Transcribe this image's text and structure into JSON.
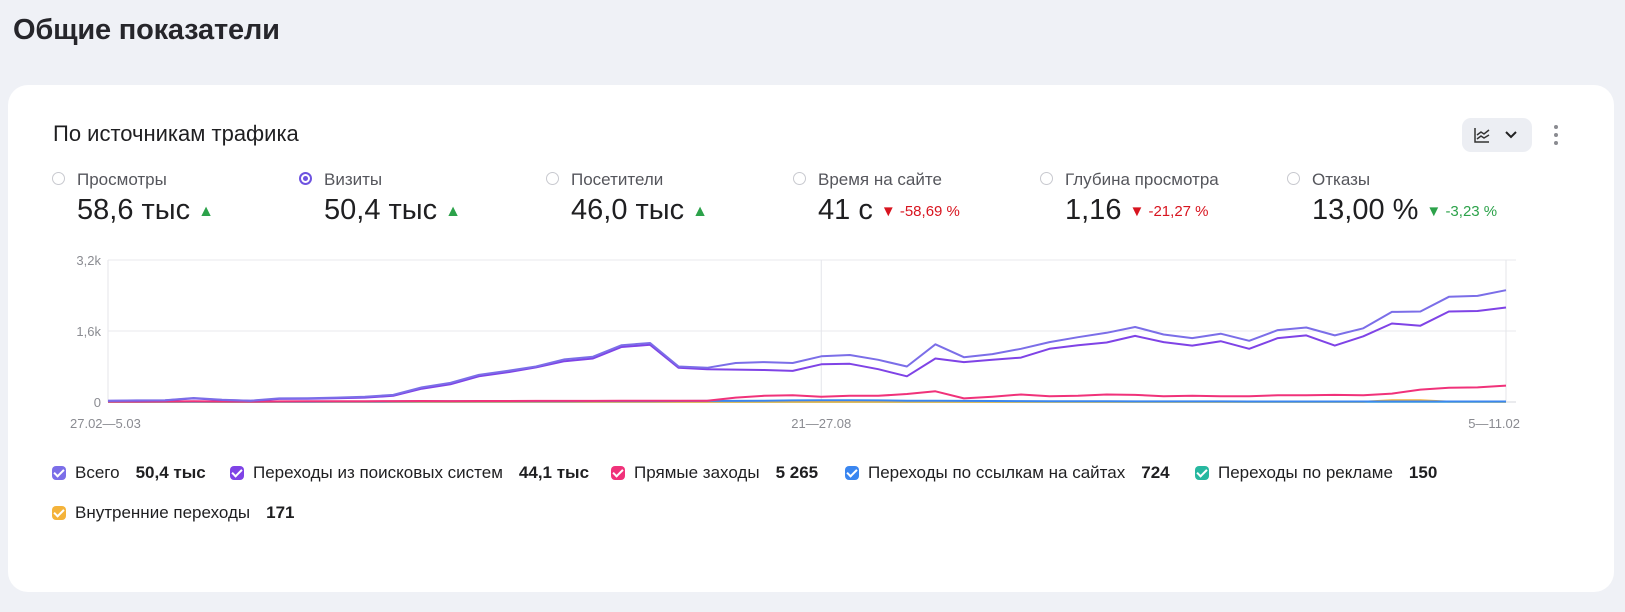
{
  "page_title": "Общие показатели",
  "card": {
    "title": "По источникам трафика",
    "view_toggle_icon": "chart-lines-icon",
    "more_icon": "more-vertical-icon"
  },
  "metrics": [
    {
      "label": "Просмотры",
      "value": "58,6 тыс",
      "change": "",
      "trend": "up",
      "selected": false
    },
    {
      "label": "Визиты",
      "value": "50,4 тыс",
      "change": "",
      "trend": "up",
      "selected": true
    },
    {
      "label": "Посетители",
      "value": "46,0 тыс",
      "change": "",
      "trend": "up",
      "selected": false
    },
    {
      "label": "Время на сайте",
      "value": "41 с",
      "change": "-58,69 %",
      "trend": "down-bad",
      "selected": false
    },
    {
      "label": "Глубина просмотра",
      "value": "1,16",
      "change": "-21,27 %",
      "trend": "down-bad",
      "selected": false
    },
    {
      "label": "Отказы",
      "value": "13,00 %",
      "change": "-3,23 %",
      "trend": "down-good",
      "selected": false
    }
  ],
  "colors": {
    "total": "#7b6ee8",
    "search": "#7f43e6",
    "direct": "#f0327a",
    "links": "#3a86f0",
    "ads": "#27b8a0",
    "internal": "#f4b33a",
    "up": "#2ca24a",
    "down": "#d8141f"
  },
  "chart_data": {
    "type": "line",
    "y_ticks": [
      "3,2k",
      "1,6k",
      "0"
    ],
    "ylim": [
      0,
      3200
    ],
    "x_tick_labels": [
      "27.02—5.03",
      "21—27.08",
      "5—11.02"
    ],
    "x_tick_indices": [
      0,
      25,
      49
    ],
    "series": [
      {
        "name": "Всего",
        "key": "total",
        "values": [
          30,
          35,
          40,
          90,
          50,
          30,
          80,
          85,
          100,
          120,
          160,
          330,
          430,
          610,
          700,
          800,
          960,
          1020,
          1280,
          1330,
          800,
          770,
          880,
          900,
          880,
          1030,
          1060,
          950,
          800,
          1300,
          1010,
          1080,
          1200,
          1350,
          1460,
          1560,
          1690,
          1520,
          1440,
          1540,
          1380,
          1620,
          1680,
          1500,
          1660,
          2030,
          2040,
          2370,
          2390,
          2520
        ]
      },
      {
        "name": "Переходы из поисковых систем",
        "key": "search",
        "values": [
          25,
          30,
          35,
          80,
          45,
          28,
          70,
          75,
          85,
          100,
          140,
          300,
          400,
          580,
          670,
          780,
          920,
          980,
          1240,
          1290,
          770,
          740,
          730,
          720,
          700,
          850,
          860,
          740,
          580,
          980,
          900,
          950,
          1000,
          1200,
          1280,
          1340,
          1490,
          1350,
          1270,
          1370,
          1200,
          1440,
          1500,
          1270,
          1480,
          1770,
          1720,
          2040,
          2050,
          2130
        ]
      },
      {
        "name": "Прямые заходы",
        "key": "direct",
        "values": [
          10,
          10,
          12,
          15,
          12,
          10,
          14,
          15,
          15,
          18,
          20,
          22,
          20,
          22,
          22,
          25,
          25,
          25,
          30,
          30,
          30,
          30,
          100,
          140,
          150,
          120,
          140,
          140,
          180,
          240,
          80,
          120,
          170,
          130,
          140,
          170,
          160,
          130,
          140,
          130,
          130,
          150,
          150,
          160,
          150,
          190,
          280,
          320,
          330,
          370
        ]
      },
      {
        "name": "Переходы по ссылкам на сайтах",
        "key": "links",
        "values": [
          8,
          8,
          8,
          10,
          8,
          8,
          10,
          10,
          12,
          12,
          14,
          15,
          15,
          16,
          16,
          18,
          18,
          20,
          20,
          20,
          22,
          24,
          25,
          30,
          35,
          40,
          38,
          35,
          30,
          28,
          25,
          22,
          20,
          18,
          16,
          15,
          14,
          14,
          13,
          13,
          12,
          12,
          12,
          12,
          12,
          12,
          12,
          12,
          12,
          12
        ]
      },
      {
        "name": "Переходы по рекламе",
        "key": "ads",
        "values": [
          3,
          3,
          3,
          4,
          3,
          3,
          4,
          4,
          5,
          5,
          5,
          5,
          6,
          6,
          6,
          6,
          6,
          6,
          6,
          6,
          6,
          6,
          6,
          6,
          6,
          6,
          6,
          6,
          6,
          6,
          6,
          6,
          6,
          6,
          6,
          6,
          6,
          6,
          6,
          6,
          6,
          6,
          6,
          6,
          6,
          6,
          6,
          6,
          6,
          6
        ]
      },
      {
        "name": "Внутренние переходы",
        "key": "internal",
        "values": [
          4,
          4,
          4,
          5,
          4,
          4,
          5,
          5,
          5,
          5,
          5,
          6,
          6,
          6,
          6,
          6,
          6,
          6,
          6,
          6,
          6,
          6,
          6,
          6,
          6,
          6,
          6,
          6,
          6,
          6,
          6,
          6,
          6,
          6,
          6,
          6,
          6,
          6,
          6,
          6,
          6,
          6,
          6,
          6,
          6,
          40,
          40,
          10,
          8,
          6
        ]
      }
    ]
  },
  "legend": [
    {
      "label": "Всего",
      "value": "50,4 тыс",
      "key": "total"
    },
    {
      "label": "Переходы из поисковых систем",
      "value": "44,1 тыс",
      "key": "search"
    },
    {
      "label": "Прямые заходы",
      "value": "5 265",
      "key": "direct"
    },
    {
      "label": "Переходы по ссылкам на сайтах",
      "value": "724",
      "key": "links"
    },
    {
      "label": "Переходы по рекламе",
      "value": "150",
      "key": "ads"
    },
    {
      "label": "Внутренние переходы",
      "value": "171",
      "key": "internal"
    }
  ]
}
